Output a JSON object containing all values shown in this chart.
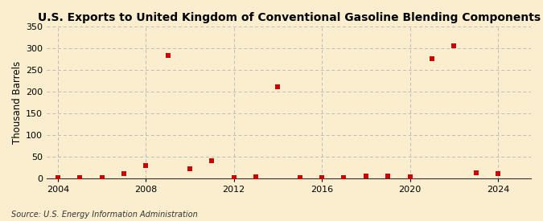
{
  "title": "U.S. Exports to United Kingdom of Conventional Gasoline Blending Components",
  "ylabel": "Thousand Barrels",
  "source": "Source: U.S. Energy Information Administration",
  "background_color": "#faeece",
  "years": [
    2004,
    2005,
    2006,
    2007,
    2008,
    2009,
    2010,
    2011,
    2012,
    2013,
    2014,
    2015,
    2016,
    2017,
    2018,
    2019,
    2020,
    2021,
    2022,
    2023,
    2024
  ],
  "values": [
    2,
    2,
    2,
    10,
    30,
    283,
    22,
    40,
    2,
    3,
    210,
    2,
    2,
    2,
    5,
    5,
    3,
    275,
    305,
    12,
    10
  ],
  "marker_color": "#cc0000",
  "marker_size": 18,
  "xlim": [
    2003.5,
    2025.5
  ],
  "ylim": [
    0,
    350
  ],
  "yticks": [
    0,
    50,
    100,
    150,
    200,
    250,
    300,
    350
  ],
  "xticks": [
    2004,
    2008,
    2012,
    2016,
    2020,
    2024
  ],
  "grid_color": "#bbbbbb",
  "title_fontsize": 10,
  "label_fontsize": 8.5,
  "tick_fontsize": 8,
  "source_fontsize": 7
}
